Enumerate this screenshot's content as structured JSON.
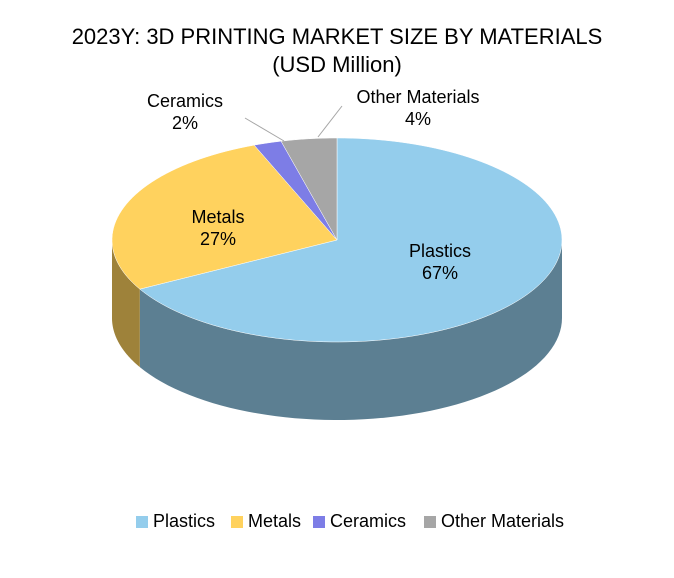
{
  "chart_data": {
    "type": "pie3d",
    "title": "2023Y: 3D PRINTING MARKET SIZE BY MATERIALS",
    "subtitle": "(USD Million)",
    "categories": [
      "Plastics",
      "Metals",
      "Ceramics",
      "Other Materials"
    ],
    "values": [
      67,
      27,
      2,
      4
    ],
    "value_labels": [
      "67%",
      "27%",
      "2%",
      "4%"
    ],
    "colors": [
      "#94cdec",
      "#ffd25e",
      "#7d7de6",
      "#a6a6a6"
    ],
    "legend": "bottom"
  }
}
